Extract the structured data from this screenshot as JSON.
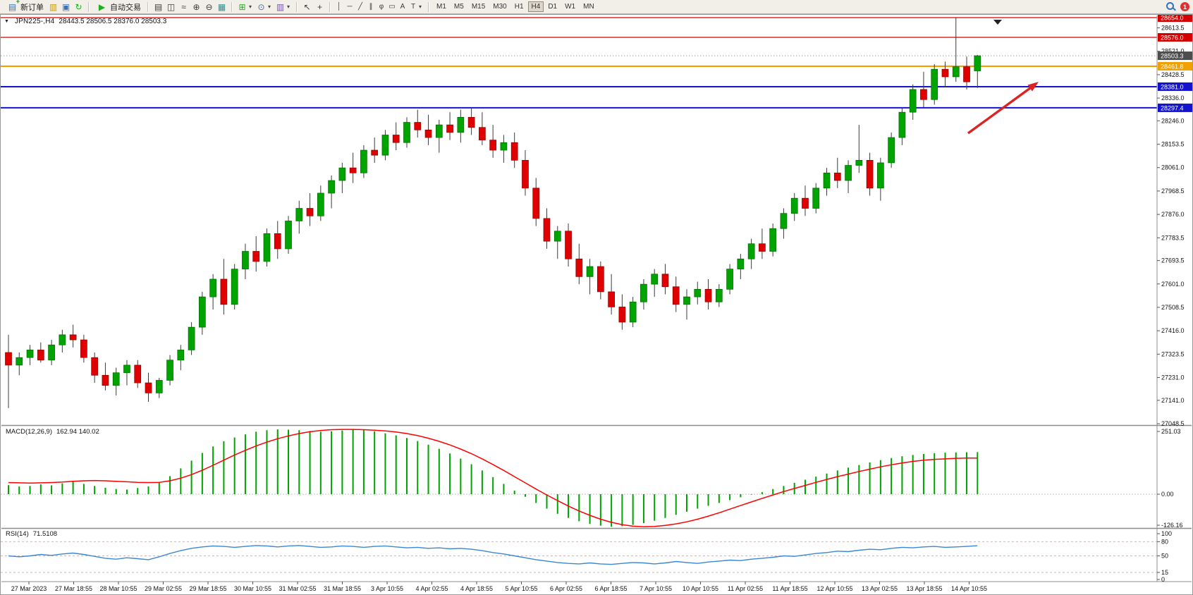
{
  "toolbar": {
    "new_order_label": "新订单",
    "autotrading_label": "自动交易",
    "timeframes": [
      "M1",
      "M5",
      "M15",
      "M30",
      "H1",
      "H4",
      "D1",
      "W1",
      "MN"
    ],
    "active_timeframe": "H4",
    "notification_count": "1"
  },
  "icons": {
    "chart_menu": "▼",
    "new_order": "▤",
    "market_watch": "▥",
    "data_window": "▣",
    "navigator": "↻",
    "play": "▶",
    "bar_chart": "▤",
    "candle_chart": "◫",
    "line_chart": "≈",
    "zoom_in": "⊕",
    "zoom_out": "⊖",
    "tile_windows": "▦",
    "indicators": "⊞",
    "periods": "⊙",
    "templates": "▥",
    "cursor": "↖",
    "crosshair": "+",
    "vline": "│",
    "hline": "─",
    "trendline": "╱",
    "channel": "∥",
    "fibonacci": "φ",
    "shapes": "▭",
    "text": "A",
    "text_label": "T",
    "caret": "▾"
  },
  "chart_window": {
    "symbol_period": "JPN225-,H4",
    "ohlc_text": "28443.5 28506.5 28376.0 28503.3",
    "macd_label": "MACD(12,26,9)",
    "macd_values": "162.94 140.02",
    "rsi_label": "RSI(14)",
    "rsi_value": "71.5108"
  },
  "chart_data": {
    "type": "candlestick",
    "symbol": "JPN225-",
    "timeframe": "H4",
    "last_bar": {
      "open": 28443.5,
      "high": 28506.5,
      "low": 28376.0,
      "close": 28503.3
    },
    "bid": {
      "price": 28503.3,
      "label": "28503.3",
      "chip": "#4d4d4d"
    },
    "price_axis": {
      "ticks": [
        28613.5,
        28521.0,
        28428.5,
        28336.0,
        28246.0,
        28153.5,
        28061.0,
        27968.5,
        27876.0,
        27783.5,
        27693.5,
        27601.0,
        27508.5,
        27416.0,
        27323.5,
        27231.0,
        27141.0,
        27048.5
      ],
      "max_visible": 28654.0,
      "min_visible": 27048.5
    },
    "horizontal_lines": [
      {
        "price": 28654.0,
        "label": "28654.0",
        "color": "#d40000",
        "width": 1.2
      },
      {
        "price": 28576.0,
        "label": "28576.0",
        "color": "#d40000",
        "width": 1.2
      },
      {
        "price": 28461.8,
        "label": "28461.8",
        "color": "#f0a000",
        "width": 2.2
      },
      {
        "price": 28381.0,
        "label": "28381.0",
        "color": "#1414cc",
        "width": 2
      },
      {
        "price": 28297.4,
        "label": "28297.4",
        "color": "#1414cc",
        "width": 2
      }
    ],
    "candles": [
      [
        27330,
        27400,
        27110,
        27280
      ],
      [
        27280,
        27330,
        27240,
        27310
      ],
      [
        27310,
        27360,
        27280,
        27340
      ],
      [
        27340,
        27370,
        27290,
        27300
      ],
      [
        27300,
        27380,
        27280,
        27360
      ],
      [
        27360,
        27420,
        27330,
        27400
      ],
      [
        27400,
        27440,
        27350,
        27380
      ],
      [
        27380,
        27400,
        27290,
        27310
      ],
      [
        27310,
        27330,
        27210,
        27240
      ],
      [
        27240,
        27290,
        27180,
        27200
      ],
      [
        27200,
        27270,
        27160,
        27250
      ],
      [
        27250,
        27300,
        27200,
        27280
      ],
      [
        27280,
        27300,
        27190,
        27210
      ],
      [
        27210,
        27250,
        27135,
        27170
      ],
      [
        27170,
        27230,
        27150,
        27220
      ],
      [
        27220,
        27320,
        27200,
        27300
      ],
      [
        27300,
        27360,
        27260,
        27340
      ],
      [
        27340,
        27450,
        27320,
        27430
      ],
      [
        27430,
        27570,
        27400,
        27550
      ],
      [
        27550,
        27640,
        27500,
        27620
      ],
      [
        27620,
        27700,
        27480,
        27520
      ],
      [
        27520,
        27680,
        27500,
        27660
      ],
      [
        27660,
        27760,
        27620,
        27730
      ],
      [
        27730,
        27790,
        27650,
        27690
      ],
      [
        27690,
        27820,
        27670,
        27800
      ],
      [
        27800,
        27850,
        27700,
        27740
      ],
      [
        27740,
        27870,
        27720,
        27850
      ],
      [
        27850,
        27930,
        27800,
        27900
      ],
      [
        27900,
        27960,
        27830,
        27870
      ],
      [
        27870,
        27990,
        27850,
        27960
      ],
      [
        27960,
        28030,
        27900,
        28010
      ],
      [
        28010,
        28080,
        27960,
        28060
      ],
      [
        28060,
        28120,
        28000,
        28040
      ],
      [
        28040,
        28150,
        28020,
        28130
      ],
      [
        28130,
        28180,
        28080,
        28110
      ],
      [
        28110,
        28210,
        28090,
        28190
      ],
      [
        28190,
        28240,
        28130,
        28160
      ],
      [
        28160,
        28260,
        28140,
        28240
      ],
      [
        28240,
        28290,
        28180,
        28210
      ],
      [
        28210,
        28270,
        28150,
        28180
      ],
      [
        28180,
        28250,
        28120,
        28230
      ],
      [
        28230,
        28280,
        28170,
        28200
      ],
      [
        28200,
        28290,
        28160,
        28260
      ],
      [
        28260,
        28295,
        28190,
        28220
      ],
      [
        28220,
        28280,
        28150,
        28170
      ],
      [
        28170,
        28230,
        28100,
        28130
      ],
      [
        28130,
        28190,
        28080,
        28160
      ],
      [
        28160,
        28200,
        28060,
        28090
      ],
      [
        28090,
        28130,
        27950,
        27980
      ],
      [
        27980,
        28020,
        27830,
        27860
      ],
      [
        27860,
        27900,
        27740,
        27770
      ],
      [
        27770,
        27830,
        27700,
        27810
      ],
      [
        27810,
        27840,
        27670,
        27700
      ],
      [
        27700,
        27760,
        27600,
        27630
      ],
      [
        27630,
        27700,
        27560,
        27670
      ],
      [
        27670,
        27690,
        27540,
        27570
      ],
      [
        27570,
        27640,
        27480,
        27510
      ],
      [
        27510,
        27560,
        27420,
        27450
      ],
      [
        27450,
        27550,
        27430,
        27530
      ],
      [
        27530,
        27620,
        27500,
        27600
      ],
      [
        27600,
        27660,
        27550,
        27640
      ],
      [
        27640,
        27680,
        27560,
        27590
      ],
      [
        27590,
        27630,
        27490,
        27520
      ],
      [
        27520,
        27580,
        27460,
        27550
      ],
      [
        27550,
        27610,
        27520,
        27580
      ],
      [
        27580,
        27620,
        27500,
        27530
      ],
      [
        27530,
        27600,
        27510,
        27580
      ],
      [
        27580,
        27680,
        27560,
        27660
      ],
      [
        27660,
        27720,
        27620,
        27700
      ],
      [
        27700,
        27780,
        27660,
        27760
      ],
      [
        27760,
        27820,
        27700,
        27730
      ],
      [
        27730,
        27840,
        27710,
        27820
      ],
      [
        27820,
        27900,
        27780,
        27880
      ],
      [
        27880,
        27960,
        27850,
        27940
      ],
      [
        27940,
        27990,
        27870,
        27900
      ],
      [
        27900,
        28000,
        27880,
        27980
      ],
      [
        27980,
        28060,
        27950,
        28040
      ],
      [
        28040,
        28100,
        27980,
        28010
      ],
      [
        28010,
        28090,
        27960,
        28070
      ],
      [
        28070,
        28230,
        28040,
        28090
      ],
      [
        28090,
        28120,
        27950,
        27980
      ],
      [
        27980,
        28100,
        27930,
        28080
      ],
      [
        28080,
        28200,
        28060,
        28180
      ],
      [
        28180,
        28300,
        28150,
        28280
      ],
      [
        28280,
        28390,
        28250,
        28370
      ],
      [
        28370,
        28440,
        28300,
        28330
      ],
      [
        28330,
        28470,
        28310,
        28450
      ],
      [
        28450,
        28480,
        28380,
        28420
      ],
      [
        28420,
        28655,
        28400,
        28460
      ],
      [
        28460,
        28500,
        28370,
        28400
      ],
      [
        28443.5,
        28506.5,
        28376,
        28503.3
      ]
    ],
    "time_labels": [
      "27 Mar 2023",
      "27 Mar 18:55",
      "28 Mar 10:55",
      "29 Mar 02:55",
      "29 Mar 18:55",
      "30 Mar 10:55",
      "31 Mar 02:55",
      "31 Mar 18:55",
      "3 Apr 10:55",
      "4 Apr 02:55",
      "4 Apr 18:55",
      "5 Apr 10:55",
      "6 Apr 02:55",
      "6 Apr 18:55",
      "7 Apr 10:55",
      "10 Apr 10:55",
      "11 Apr 02:55",
      "11 Apr 18:55",
      "12 Apr 10:55",
      "13 Apr 02:55",
      "13 Apr 18:55",
      "14 Apr 10:55"
    ],
    "indicators": {
      "macd": {
        "name": "MACD(12,26,9)",
        "main_value": 162.94,
        "signal_value": 140.02,
        "axis_ticks": [
          251.03,
          0,
          -126.16
        ],
        "histogram": [
          35,
          30,
          32,
          38,
          34,
          42,
          48,
          40,
          32,
          25,
          20,
          18,
          24,
          30,
          45,
          70,
          100,
          130,
          160,
          185,
          205,
          220,
          232,
          242,
          248,
          251,
          250,
          248,
          245,
          242,
          244,
          247,
          250,
          248,
          243,
          236,
          228,
          218,
          206,
          192,
          176,
          158,
          138,
          116,
          92,
          66,
          40,
          14,
          -10,
          -34,
          -56,
          -76,
          -92,
          -105,
          -115,
          -122,
          -126,
          -124,
          -119,
          -112,
          -103,
          -92,
          -80,
          -68,
          -56,
          -45,
          -34,
          -23,
          -12,
          -2,
          8,
          20,
          32,
          44,
          56,
          68,
          80,
          92,
          103,
          113,
          123,
          132,
          140,
          147,
          152,
          156,
          159,
          161,
          162,
          162.5,
          162.9
        ],
        "signal": [
          45,
          44,
          43,
          44,
          45,
          47,
          50,
          52,
          53,
          52,
          50,
          48,
          46,
          45,
          46,
          52,
          62,
          76,
          93,
          112,
          132,
          152,
          170,
          187,
          202,
          215,
          226,
          235,
          242,
          247,
          250,
          251,
          251,
          250,
          248,
          245,
          241,
          235,
          227,
          217,
          205,
          191,
          175,
          157,
          137,
          115,
          92,
          68,
          44,
          20,
          -3,
          -25,
          -46,
          -65,
          -82,
          -97,
          -109,
          -118,
          -124,
          -126,
          -125,
          -121,
          -115,
          -107,
          -97,
          -85,
          -72,
          -58,
          -44,
          -30,
          -16,
          -3,
          10,
          22,
          34,
          46,
          57,
          68,
          78,
          88,
          97,
          106,
          114,
          121,
          127,
          132,
          135,
          137,
          139,
          140,
          140.02
        ]
      },
      "rsi": {
        "name": "RSI(14)",
        "value": 71.5108,
        "axis_ticks": [
          100,
          80,
          50,
          15,
          0
        ],
        "levels": [
          80,
          50,
          15
        ],
        "values": [
          50,
          48,
          50,
          53,
          51,
          54,
          56,
          53,
          49,
          45,
          43,
          46,
          44,
          42,
          48,
          55,
          61,
          66,
          69,
          71,
          70,
          68,
          70,
          72,
          71,
          69,
          71,
          72,
          70,
          68,
          69,
          71,
          70,
          68,
          70,
          71,
          69,
          67,
          68,
          66,
          67,
          65,
          66,
          64,
          61,
          57,
          54,
          50,
          46,
          42,
          39,
          36,
          34,
          33,
          35,
          33,
          32,
          34,
          36,
          35,
          33,
          35,
          38,
          36,
          34,
          37,
          39,
          41,
          40,
          43,
          45,
          47,
          50,
          49,
          52,
          55,
          57,
          60,
          59,
          62,
          64,
          63,
          66,
          68,
          67,
          69,
          70,
          68,
          69,
          70,
          71.51
        ],
        "overbought_line": 80,
        "middle_line": 50
      }
    },
    "annotations": [
      {
        "type": "arrow",
        "direction": "up-right",
        "color": "#dd2222"
      }
    ],
    "colors": {
      "up": "#00a400",
      "down": "#e00000",
      "wick": "#3c3c3c",
      "macd_histogram": "#00a400",
      "macd_signal": "#ff0000",
      "rsi_line": "#3a87d4",
      "annotation_arrow": "#dd2222"
    }
  }
}
